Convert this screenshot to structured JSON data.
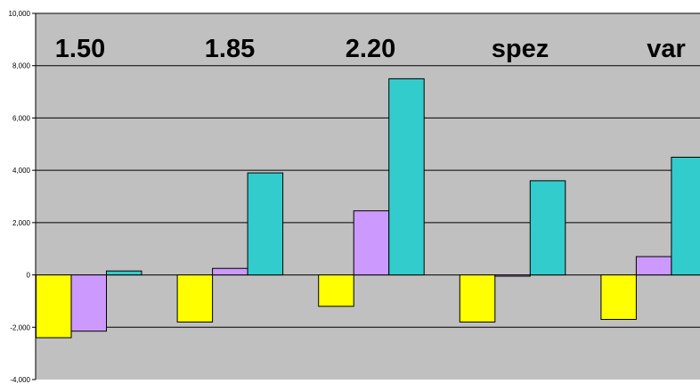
{
  "chart_data": {
    "type": "bar",
    "categories": [
      "1.50",
      "1.85",
      "2.20",
      "spez",
      "var"
    ],
    "series": [
      {
        "color": "#ffff00",
        "values": [
          -2400,
          -1800,
          -1200,
          -1800,
          -1700
        ]
      },
      {
        "color": "#cc99ff",
        "values": [
          -2150,
          250,
          2450,
          -50,
          700
        ]
      },
      {
        "color": "#33cccc",
        "values": [
          150,
          3900,
          7500,
          3600,
          4500
        ]
      }
    ],
    "ylim": [
      -4000,
      10000
    ],
    "yticks": [
      -4000,
      -2000,
      0,
      2000,
      4000,
      6000,
      8000,
      10000
    ],
    "ytick_labels": [
      "-4,000",
      "-2,000",
      "0",
      "2,000",
      "4,000",
      "6,000",
      "8,000",
      "10,000"
    ],
    "grid": true,
    "plot_background": "#c0c0c0",
    "bar_border": "#000000"
  }
}
